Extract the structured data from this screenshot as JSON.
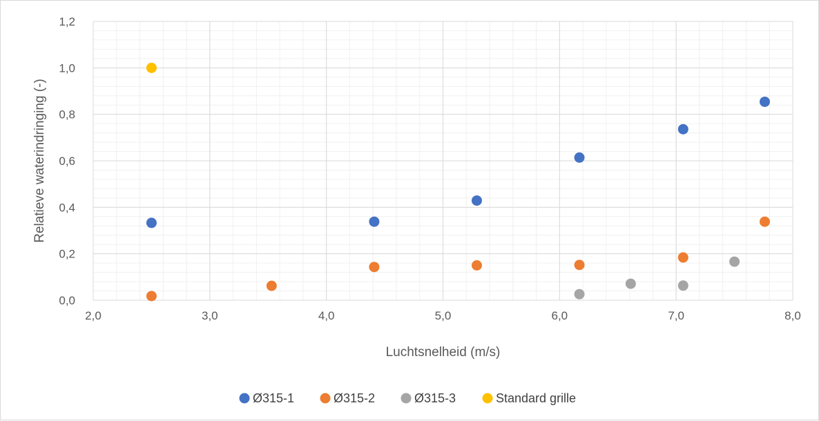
{
  "chart_data": {
    "type": "scatter",
    "title": "",
    "xlabel": "Luchtsnelheid (m/s)",
    "ylabel": "Relatieve waterindringing (-)",
    "xlim": [
      2.0,
      8.0
    ],
    "ylim": [
      0.0,
      1.2
    ],
    "xticks": [
      2.0,
      3.0,
      4.0,
      5.0,
      6.0,
      7.0,
      8.0
    ],
    "yticks": [
      0.0,
      0.2,
      0.4,
      0.6,
      0.8,
      1.0,
      1.2
    ],
    "xtick_labels": [
      "2,0",
      "3,0",
      "4,0",
      "5,0",
      "6,0",
      "7,0",
      "8,0"
    ],
    "ytick_labels": [
      "0,0",
      "0,2",
      "0,4",
      "0,6",
      "0,8",
      "1,0",
      "1,2"
    ],
    "grid": true,
    "minor_grid": true,
    "legend_position": "bottom",
    "series": [
      {
        "name": "Ø315-1",
        "color": "#4472C4",
        "points": [
          [
            2.5,
            0.333
          ],
          [
            4.41,
            0.338
          ],
          [
            5.29,
            0.429
          ],
          [
            6.17,
            0.614
          ],
          [
            7.06,
            0.736
          ],
          [
            7.76,
            0.854
          ]
        ]
      },
      {
        "name": "Ø315-2",
        "color": "#ED7D31",
        "points": [
          [
            2.5,
            0.018
          ],
          [
            3.53,
            0.062
          ],
          [
            4.41,
            0.143
          ],
          [
            5.29,
            0.15
          ],
          [
            6.17,
            0.152
          ],
          [
            7.06,
            0.184
          ],
          [
            7.76,
            0.338
          ]
        ]
      },
      {
        "name": "Ø315-3",
        "color": "#A5A5A5",
        "points": [
          [
            6.17,
            0.026
          ],
          [
            6.61,
            0.071
          ],
          [
            7.06,
            0.063
          ],
          [
            7.5,
            0.166
          ]
        ]
      },
      {
        "name": "Standard grille",
        "color": "#FFC000",
        "points": [
          [
            2.5,
            1.0
          ]
        ]
      }
    ]
  }
}
